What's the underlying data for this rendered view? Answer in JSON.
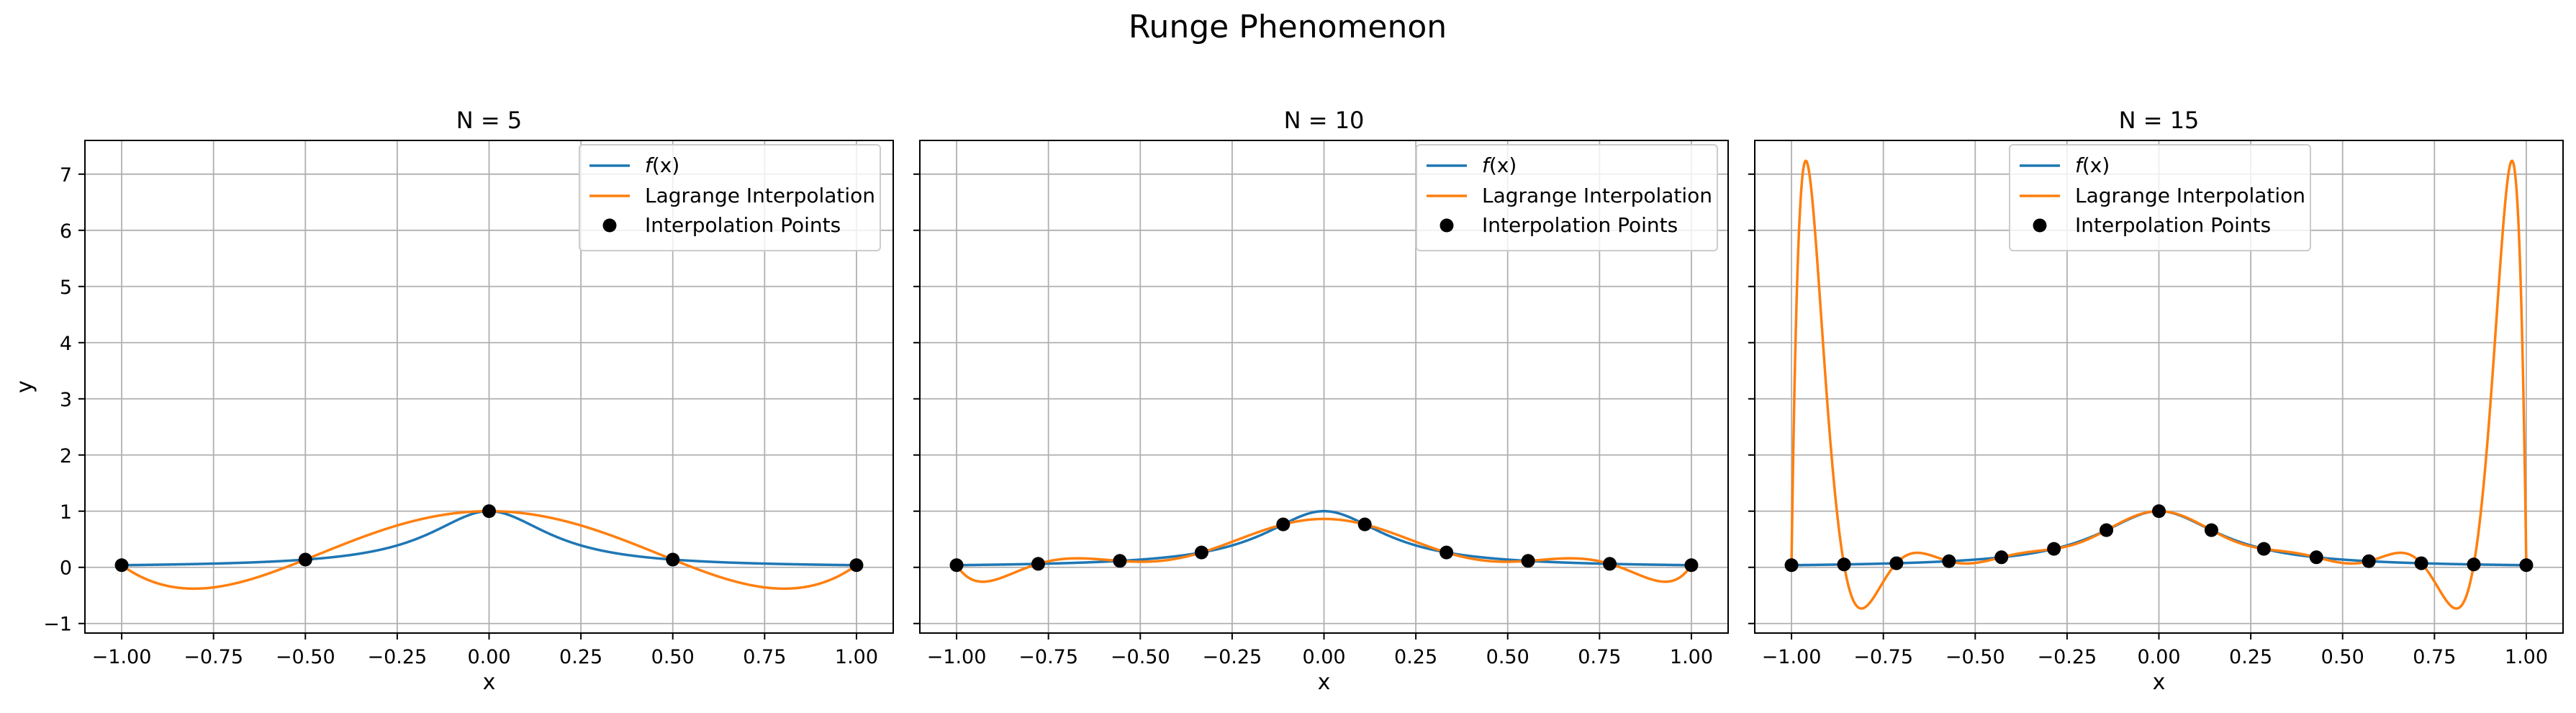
{
  "figure": {
    "title": "Runge Phenomenon",
    "background": "#ffffff"
  },
  "colors": {
    "fx": "#1f77b4",
    "interp": "#ff7f0e",
    "points": "#000000",
    "grid": "#b0b0b0"
  },
  "legend": {
    "fx_label_func": "f",
    "fx_label_arg": "(x)",
    "interp_label": "Lagrange Interpolation",
    "points_label": "Interpolation Points",
    "placement": "top-center-right"
  },
  "chart_data": [
    {
      "type": "line",
      "title": "N = 5",
      "xlabel": "x",
      "ylabel": "y",
      "grid": true,
      "xlim": [
        -1.1,
        1.1
      ],
      "ylim": [
        -1.17,
        7.6
      ],
      "xticks": [
        -1.0,
        -0.75,
        -0.5,
        -0.25,
        0.0,
        0.25,
        0.5,
        0.75,
        1.0
      ],
      "xtick_labels": [
        "−1.00",
        "−0.75",
        "−0.50",
        "−0.25",
        "0.00",
        "0.25",
        "0.50",
        "0.75",
        "1.00"
      ],
      "yticks": [
        -1,
        0,
        1,
        2,
        3,
        4,
        5,
        6,
        7
      ],
      "ytick_labels": [
        "−1",
        "0",
        "1",
        "2",
        "3",
        "4",
        "5",
        "6",
        "7"
      ],
      "function": "1/(1+25x^2)",
      "n_points": 5,
      "points_x": [
        -1.0,
        -0.5,
        0.0,
        0.5,
        1.0
      ],
      "points_y": [
        0.0385,
        0.1379,
        1.0,
        0.1379,
        0.0385
      ],
      "series": [
        {
          "name": "f(x)",
          "color": "#1f77b4"
        },
        {
          "name": "Lagrange Interpolation",
          "color": "#ff7f0e"
        },
        {
          "name": "Interpolation Points",
          "color": "#000000"
        }
      ]
    },
    {
      "type": "line",
      "title": "N = 10",
      "xlabel": "x",
      "ylabel": "",
      "grid": true,
      "xlim": [
        -1.1,
        1.1
      ],
      "ylim": [
        -1.17,
        7.6
      ],
      "xticks": [
        -1.0,
        -0.75,
        -0.5,
        -0.25,
        0.0,
        0.25,
        0.5,
        0.75,
        1.0
      ],
      "xtick_labels": [
        "−1.00",
        "−0.75",
        "−0.50",
        "−0.25",
        "0.00",
        "0.25",
        "0.50",
        "0.75",
        "1.00"
      ],
      "yticks": [
        -1,
        0,
        1,
        2,
        3,
        4,
        5,
        6,
        7
      ],
      "ytick_labels": [],
      "function": "1/(1+25x^2)",
      "n_points": 10,
      "points_x": [
        -1.0,
        -0.7778,
        -0.5556,
        -0.3333,
        -0.1111,
        0.1111,
        0.3333,
        0.5556,
        0.7778,
        1.0
      ],
      "points_y": [
        0.0385,
        0.062,
        0.1147,
        0.2647,
        0.7642,
        0.7642,
        0.2647,
        0.1147,
        0.062,
        0.0385
      ],
      "series": [
        {
          "name": "f(x)",
          "color": "#1f77b4"
        },
        {
          "name": "Lagrange Interpolation",
          "color": "#ff7f0e"
        },
        {
          "name": "Interpolation Points",
          "color": "#000000"
        }
      ]
    },
    {
      "type": "line",
      "title": "N = 15",
      "xlabel": "x",
      "ylabel": "",
      "grid": true,
      "xlim": [
        -1.1,
        1.1
      ],
      "ylim": [
        -1.17,
        7.6
      ],
      "xticks": [
        -1.0,
        -0.75,
        -0.5,
        -0.25,
        0.0,
        0.25,
        0.5,
        0.75,
        1.0
      ],
      "xtick_labels": [
        "−1.00",
        "−0.75",
        "−0.50",
        "−0.25",
        "0.00",
        "0.25",
        "0.50",
        "0.75",
        "1.00"
      ],
      "yticks": [
        -1,
        0,
        1,
        2,
        3,
        4,
        5,
        6,
        7
      ],
      "ytick_labels": [],
      "function": "1/(1+25x^2)",
      "n_points": 15,
      "points_x": [
        -1.0,
        -0.8571,
        -0.7143,
        -0.5714,
        -0.4286,
        -0.2857,
        -0.1429,
        0.0,
        0.1429,
        0.2857,
        0.4286,
        0.5714,
        0.7143,
        0.8571,
        1.0
      ],
      "points_y": [
        0.0385,
        0.0516,
        0.0727,
        0.1091,
        0.1789,
        0.3289,
        0.6622,
        1.0,
        0.6622,
        0.3289,
        0.1789,
        0.1091,
        0.0727,
        0.0516,
        0.0385
      ],
      "series": [
        {
          "name": "f(x)",
          "color": "#1f77b4"
        },
        {
          "name": "Lagrange Interpolation",
          "color": "#ff7f0e"
        },
        {
          "name": "Interpolation Points",
          "color": "#000000"
        }
      ]
    }
  ]
}
